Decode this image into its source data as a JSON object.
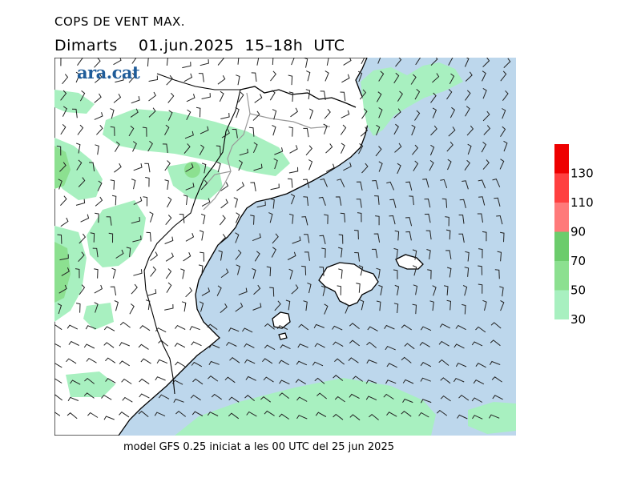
{
  "header": {
    "title": "COPS DE VENT MAX.",
    "subtitle": "Dimarts    01.jun.2025  15–18h  UTC"
  },
  "logo": {
    "text": "ara.cat"
  },
  "footer": {
    "text": "model GFS 0.25 iniciat a les 00 UTC del 25 jun 2025"
  },
  "legend": {
    "levels": [
      {
        "label": "30",
        "color": "#a8f0c0"
      },
      {
        "label": "50",
        "color": "#8ce090"
      },
      {
        "label": "70",
        "color": "#6ccc6c"
      },
      {
        "label": "90",
        "color": "#ff7a7a"
      },
      {
        "label": "110",
        "color": "#ff4040"
      },
      {
        "label": "130",
        "color": "#ee0000"
      }
    ]
  },
  "map_colors": {
    "sea": "#bdd7ec",
    "land": "#ffffff",
    "gust_30": "#a8f0c0",
    "gust_50": "#8ce090",
    "gust_70": "#6ccc6c",
    "border": "#000000",
    "admin_border": "#999999",
    "barb": "#222222"
  }
}
